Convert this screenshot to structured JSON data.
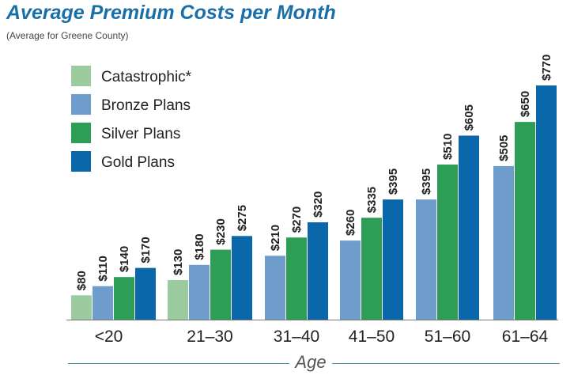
{
  "header": {
    "title": "Average Premium Costs per Month",
    "subtitle": "(Average for Greene County)"
  },
  "colors": {
    "catastrophic": "#9ccb9f",
    "bronze": "#6e9ccb",
    "silver": "#2e9e57",
    "gold": "#0a67a9",
    "axis": "#4a90a4",
    "text": "#222222"
  },
  "chart_data": {
    "type": "bar",
    "title": "Average Premium Costs per Month",
    "subtitle": "(Average for Greene County)",
    "xlabel": "Age",
    "ylabel": "",
    "categories": [
      "<20",
      "21–30",
      "31–40",
      "41–50",
      "51–60",
      "61–64"
    ],
    "series": [
      {
        "name": "Catastrophic*",
        "color": "#9ccb9f",
        "values": [
          80,
          130,
          null,
          null,
          null,
          null
        ]
      },
      {
        "name": "Bronze Plans",
        "color": "#6e9ccb",
        "values": [
          110,
          180,
          210,
          260,
          395,
          505
        ]
      },
      {
        "name": "Silver Plans",
        "color": "#2e9e57",
        "values": [
          140,
          230,
          270,
          335,
          510,
          650
        ]
      },
      {
        "name": "Gold Plans",
        "color": "#0a67a9",
        "values": [
          170,
          275,
          320,
          395,
          605,
          770
        ]
      }
    ],
    "value_prefix": "$",
    "ylim": [
      0,
      790
    ],
    "grid": false,
    "legend_position": "top-left"
  }
}
